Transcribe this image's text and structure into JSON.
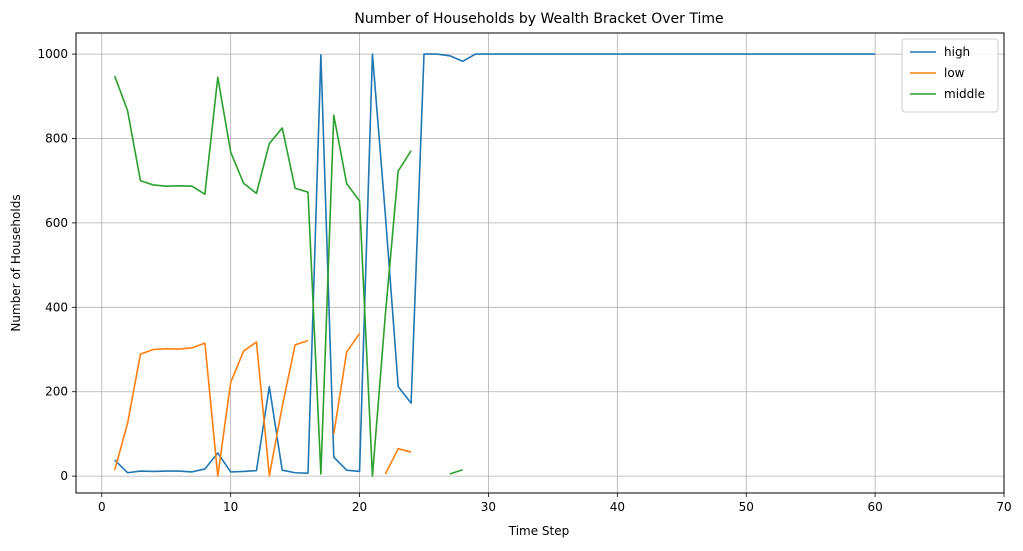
{
  "chart_data": {
    "type": "line",
    "title": "Number of Households by Wealth Bracket Over Time",
    "xlabel": "Time Step",
    "ylabel": "Number of Households",
    "xlim": [
      -2,
      70
    ],
    "ylim": [
      -40,
      1050
    ],
    "xticks": [
      0,
      10,
      20,
      30,
      40,
      50,
      60,
      70
    ],
    "yticks": [
      0,
      200,
      400,
      600,
      800,
      1000
    ],
    "grid": true,
    "legend_position": "top-right",
    "series": [
      {
        "name": "high",
        "color": "#1f77b4",
        "points": [
          [
            1,
            38
          ],
          [
            2,
            8
          ],
          [
            3,
            12
          ],
          [
            4,
            11
          ],
          [
            5,
            12
          ],
          [
            6,
            12
          ],
          [
            7,
            10
          ],
          [
            8,
            17
          ],
          [
            9,
            55
          ],
          [
            10,
            10
          ],
          [
            11,
            11
          ],
          [
            12,
            13
          ],
          [
            13,
            212
          ],
          [
            14,
            14
          ],
          [
            15,
            8
          ],
          [
            16,
            7
          ],
          [
            17,
            998
          ],
          [
            18,
            45
          ],
          [
            19,
            14
          ],
          [
            20,
            11
          ],
          [
            21,
            1000
          ],
          [
            22,
            620
          ],
          [
            23,
            212
          ],
          [
            24,
            173
          ],
          [
            25,
            1000
          ],
          [
            26,
            1000
          ],
          [
            27,
            996
          ],
          [
            28,
            983
          ],
          [
            29,
            1000
          ],
          [
            30,
            1000
          ],
          [
            31,
            1000
          ],
          [
            32,
            1000
          ],
          [
            33,
            1000
          ],
          [
            34,
            1000
          ],
          [
            35,
            1000
          ],
          [
            36,
            1000
          ],
          [
            37,
            1000
          ],
          [
            38,
            1000
          ],
          [
            39,
            1000
          ],
          [
            40,
            1000
          ],
          [
            41,
            1000
          ],
          [
            42,
            1000
          ],
          [
            43,
            1000
          ],
          [
            44,
            1000
          ],
          [
            45,
            1000
          ],
          [
            46,
            1000
          ],
          [
            47,
            1000
          ],
          [
            48,
            1000
          ],
          [
            49,
            1000
          ],
          [
            50,
            1000
          ],
          [
            51,
            1000
          ],
          [
            52,
            1000
          ],
          [
            53,
            1000
          ],
          [
            54,
            1000
          ],
          [
            55,
            1000
          ],
          [
            56,
            1000
          ],
          [
            57,
            1000
          ],
          [
            58,
            1000
          ],
          [
            59,
            1000
          ],
          [
            60,
            1000
          ]
        ]
      },
      {
        "name": "low",
        "color": "#ff7f0e",
        "points": [
          [
            1,
            14
          ],
          [
            2,
            125
          ],
          [
            3,
            289
          ],
          [
            4,
            300
          ],
          [
            5,
            302
          ],
          [
            6,
            301
          ],
          [
            7,
            304
          ],
          [
            8,
            315
          ],
          [
            9,
            0
          ],
          [
            10,
            222
          ],
          [
            11,
            296
          ],
          [
            12,
            318
          ],
          [
            13,
            1
          ],
          [
            14,
            165
          ],
          [
            15,
            311
          ],
          [
            16,
            321
          ],
          [
            17,
            null
          ],
          [
            18,
            100
          ],
          [
            19,
            294
          ],
          [
            20,
            338
          ],
          [
            21,
            null
          ],
          [
            22,
            5
          ],
          [
            23,
            65
          ],
          [
            24,
            57
          ]
        ]
      },
      {
        "name": "middle",
        "color": "#2ca02c",
        "points": [
          [
            1,
            948
          ],
          [
            2,
            866
          ],
          [
            3,
            700
          ],
          [
            4,
            690
          ],
          [
            5,
            687
          ],
          [
            6,
            688
          ],
          [
            7,
            687
          ],
          [
            8,
            668
          ],
          [
            9,
            945
          ],
          [
            10,
            768
          ],
          [
            11,
            694
          ],
          [
            12,
            670
          ],
          [
            13,
            788
          ],
          [
            14,
            825
          ],
          [
            15,
            682
          ],
          [
            16,
            673
          ],
          [
            17,
            5
          ],
          [
            18,
            855
          ],
          [
            19,
            693
          ],
          [
            20,
            652
          ],
          [
            21,
            0
          ],
          [
            22,
            382
          ],
          [
            23,
            723
          ],
          [
            24,
            771
          ],
          [
            25,
            null
          ],
          [
            26,
            null
          ],
          [
            27,
            5
          ],
          [
            28,
            15
          ]
        ]
      }
    ]
  }
}
